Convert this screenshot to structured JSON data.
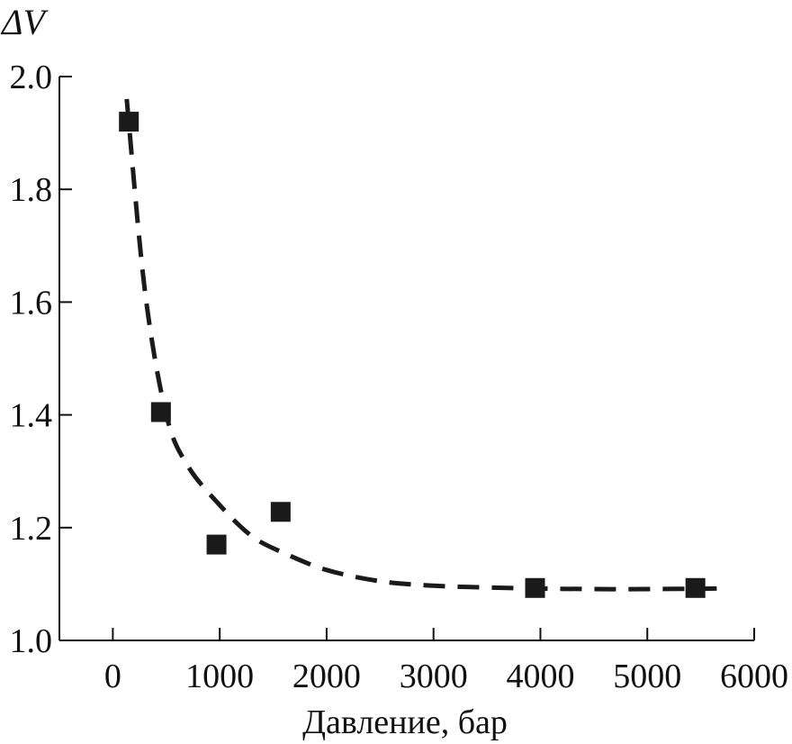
{
  "chart_data": {
    "type": "scatter",
    "title": "",
    "xlabel": "Давление, бар",
    "ylabel": "ΔV",
    "xlim": [
      -500,
      6000
    ],
    "ylim": [
      1.0,
      2.0
    ],
    "x_ticks": [
      "0",
      "1000",
      "2000",
      "3000",
      "4000",
      "5000",
      "6000"
    ],
    "y_ticks": [
      "1.0",
      "1.2",
      "1.4",
      "1.6",
      "1.8",
      "2.0"
    ],
    "grid": false,
    "legend": "none",
    "series": [
      {
        "marker": "square",
        "color": "#1a1a1a",
        "x": [
          150,
          450,
          970,
          1570,
          3950,
          5450
        ],
        "y": [
          1.92,
          1.405,
          1.17,
          1.228,
          1.093,
          1.093
        ]
      }
    ],
    "fit_curve": {
      "style": "dashed",
      "color": "#1a1a1a",
      "x": [
        130,
        300,
        500,
        700,
        1000,
        1300,
        1600,
        2000,
        2500,
        3000,
        3500,
        4000,
        4500,
        5000,
        5650
      ],
      "y": [
        1.96,
        1.62,
        1.4,
        1.31,
        1.24,
        1.185,
        1.155,
        1.125,
        1.105,
        1.097,
        1.094,
        1.092,
        1.091,
        1.091,
        1.092
      ]
    }
  }
}
